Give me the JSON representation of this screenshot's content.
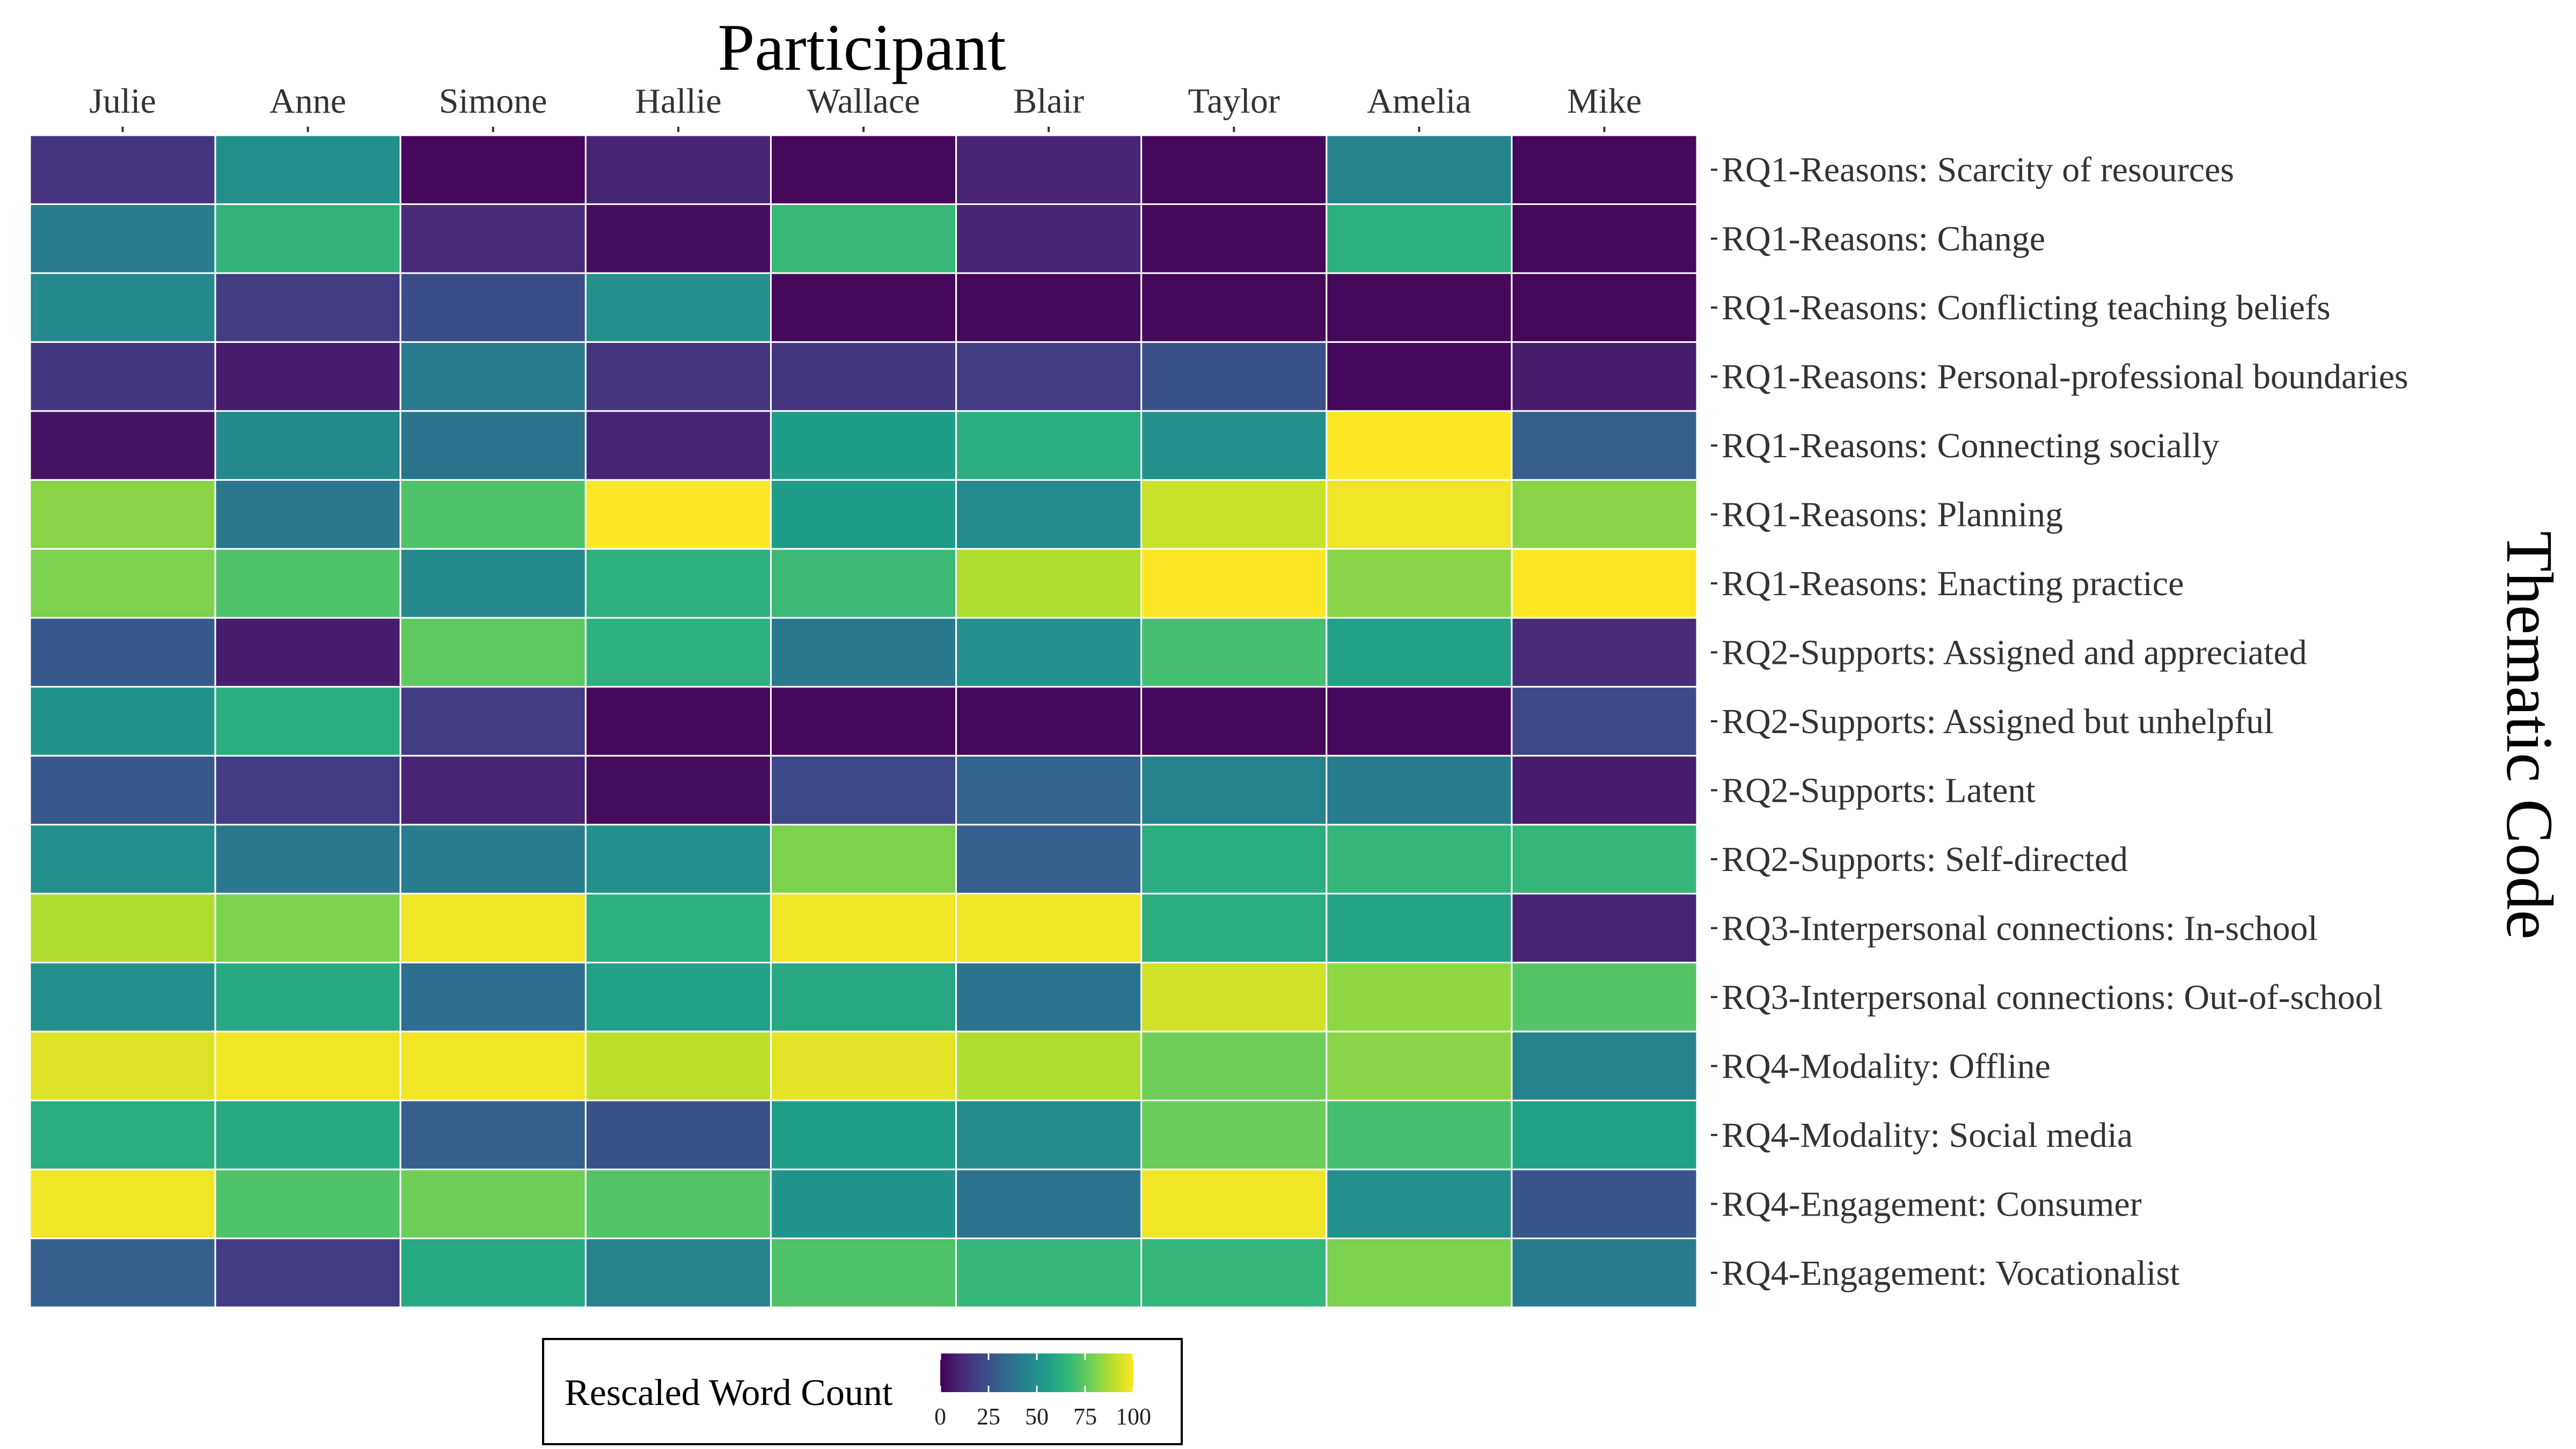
{
  "chart_data": {
    "type": "heatmap",
    "x_title": "Participant",
    "y_title": "Thematic Code",
    "x_categories": [
      "Julie",
      "Anne",
      "Simone",
      "Hallie",
      "Wallace",
      "Blair",
      "Taylor",
      "Amelia",
      "Mike"
    ],
    "y_categories": [
      "RQ1-Reasons: Scarcity of resources",
      "RQ1-Reasons: Change",
      "RQ1-Reasons: Conflicting teaching beliefs",
      "RQ1-Reasons: Personal-professional boundaries",
      "RQ1-Reasons: Connecting socially",
      "RQ1-Reasons: Planning",
      "RQ1-Reasons: Enacting practice",
      "RQ2-Supports: Assigned and appreciated",
      "RQ2-Supports: Assigned but unhelpful",
      "RQ2-Supports: Latent",
      "RQ2-Supports: Self-directed",
      "RQ3-Interpersonal connections: In-school",
      "RQ3-Interpersonal connections: Out-of-school",
      "RQ4-Modality: Offline",
      "RQ4-Modality: Social media",
      "RQ4-Engagement: Consumer",
      "RQ4-Engagement: Vocationalist"
    ],
    "values": [
      [
        15,
        50,
        2,
        10,
        2,
        10,
        2,
        45,
        2
      ],
      [
        42,
        65,
        12,
        3,
        67,
        10,
        2,
        63,
        2
      ],
      [
        47,
        18,
        24,
        50,
        2,
        2,
        2,
        2,
        2
      ],
      [
        16,
        8,
        42,
        15,
        16,
        18,
        25,
        2,
        8
      ],
      [
        5,
        47,
        38,
        10,
        55,
        62,
        50,
        100,
        30
      ],
      [
        82,
        40,
        72,
        100,
        55,
        48,
        92,
        98,
        82
      ],
      [
        80,
        72,
        47,
        63,
        68,
        88,
        100,
        82,
        100
      ],
      [
        28,
        8,
        75,
        63,
        40,
        50,
        70,
        57,
        12
      ],
      [
        52,
        62,
        18,
        2,
        2,
        2,
        2,
        2,
        22
      ],
      [
        28,
        18,
        10,
        3,
        22,
        32,
        45,
        42,
        8
      ],
      [
        50,
        40,
        42,
        50,
        80,
        30,
        62,
        66,
        66
      ],
      [
        88,
        80,
        98,
        63,
        98,
        98,
        62,
        58,
        10
      ],
      [
        50,
        60,
        36,
        57,
        60,
        38,
        93,
        83,
        73
      ],
      [
        95,
        98,
        98,
        90,
        96,
        88,
        78,
        82,
        45
      ],
      [
        62,
        60,
        30,
        25,
        56,
        48,
        77,
        70,
        57
      ],
      [
        98,
        72,
        78,
        73,
        52,
        38,
        98,
        50,
        27
      ],
      [
        30,
        18,
        60,
        45,
        72,
        66,
        66,
        80,
        42
      ]
    ],
    "legend": {
      "title": "Rescaled Word Count",
      "min": 0,
      "max": 100,
      "ticks": [
        0,
        25,
        50,
        75,
        100
      ],
      "placement": "bottom",
      "palette": "viridis"
    },
    "colors": {
      "viridis": [
        "#440154",
        "#482878",
        "#3e4989",
        "#31688e",
        "#26828e",
        "#1f9e89",
        "#35b779",
        "#6ece58",
        "#b5de2b",
        "#fde725"
      ],
      "cell_border": "#ffffff"
    }
  }
}
